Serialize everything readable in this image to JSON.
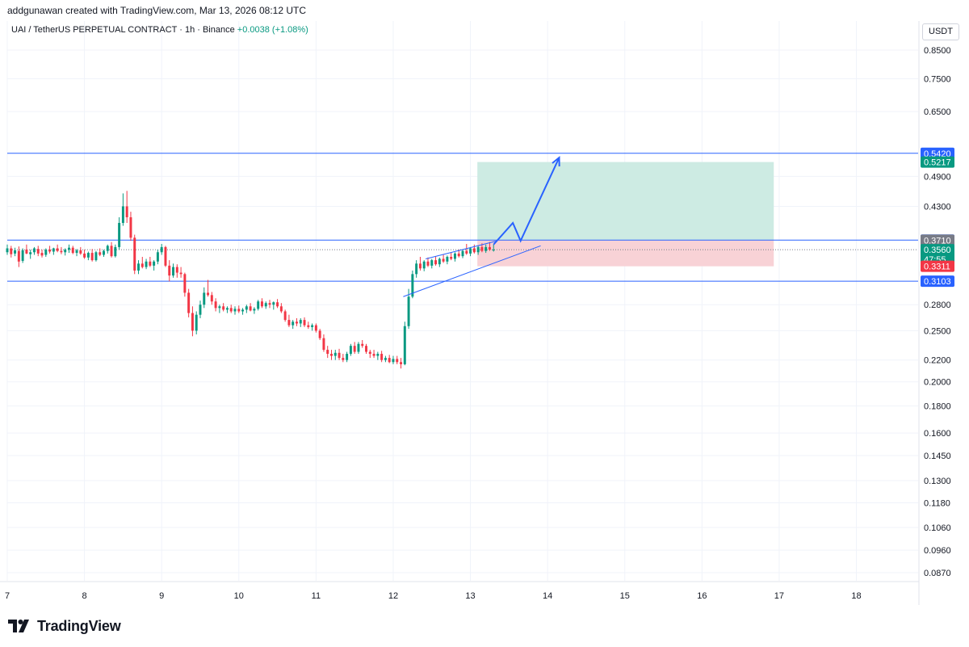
{
  "header": {
    "credit": "addgunawan created with TradingView.com, Mar 13, 2026 08:12 UTC"
  },
  "legend": {
    "symbol": "UAI / TetherUS PERPETUAL CONTRACT · 1h · Binance",
    "change": "+0.0038 (+1.08%)"
  },
  "currency": "USDT",
  "brand": {
    "name": "TradingView"
  },
  "colors": {
    "up": "#089981",
    "down": "#f23645",
    "line": "#2962ff",
    "target_zone": "#cdebe3",
    "stop_zone": "#f8d2d6",
    "badge_gray": "#787b86"
  },
  "chart_data": {
    "type": "candlestick",
    "scale": "log",
    "ylim": [
      0.084,
      0.965
    ],
    "xlim": [
      7.0,
      18.8
    ],
    "y_ticks": [
      "0.8500",
      "0.7500",
      "0.6500",
      "0.4900",
      "0.4300",
      "0.2800",
      "0.2500",
      "0.2200",
      "0.2000",
      "0.1800",
      "0.1600",
      "0.1450",
      "0.1300",
      "0.1180",
      "0.1060",
      "0.0960",
      "0.0870"
    ],
    "x_ticks": [
      "7",
      "8",
      "9",
      "10",
      "11",
      "12",
      "13",
      "14",
      "15",
      "16",
      "17",
      "18"
    ],
    "price_badges": [
      {
        "value": "0.5420",
        "color": "#2962ff",
        "y": 0.542
      },
      {
        "value": "0.5217",
        "color": "#089981",
        "y": 0.5217
      },
      {
        "value": "0.3712",
        "color": "#2962ff",
        "y": 0.3712
      },
      {
        "value": "0.3710",
        "color": "#787b86",
        "y": 0.371
      },
      {
        "value": "0.3560",
        "sub": "47:55",
        "color": "#089981",
        "y": 0.356
      },
      {
        "value": "0.3311",
        "color": "#f23645",
        "y": 0.3311
      },
      {
        "value": "0.3103",
        "color": "#2962ff",
        "y": 0.3103
      }
    ],
    "horizontal_lines": [
      0.542,
      0.3712,
      0.3103
    ],
    "last_price": 0.356,
    "position": {
      "x_start": 13.09,
      "x_end": 16.93,
      "entry": 0.371,
      "target": 0.5217,
      "stop": 0.3311
    },
    "channel_lines": [
      {
        "x1": 12.42,
        "y1": 0.342,
        "x2": 13.35,
        "y2": 0.37
      },
      {
        "x1": 12.13,
        "y1": 0.29,
        "x2": 13.91,
        "y2": 0.362
      }
    ],
    "projection": [
      [
        13.3,
        0.364
      ],
      [
        13.55,
        0.4
      ],
      [
        13.65,
        0.37
      ],
      [
        14.15,
        0.532
      ]
    ],
    "candles": [
      [
        7.0,
        0.352,
        0.364,
        0.348,
        0.358
      ],
      [
        7.05,
        0.358,
        0.362,
        0.344,
        0.349
      ],
      [
        7.1,
        0.35,
        0.359,
        0.346,
        0.355
      ],
      [
        7.15,
        0.354,
        0.361,
        0.33,
        0.338
      ],
      [
        7.2,
        0.339,
        0.358,
        0.336,
        0.355
      ],
      [
        7.25,
        0.356,
        0.364,
        0.349,
        0.35
      ],
      [
        7.3,
        0.349,
        0.356,
        0.342,
        0.352
      ],
      [
        7.35,
        0.352,
        0.36,
        0.348,
        0.358
      ],
      [
        7.4,
        0.357,
        0.362,
        0.346,
        0.35
      ],
      [
        7.45,
        0.351,
        0.356,
        0.344,
        0.347
      ],
      [
        7.5,
        0.348,
        0.358,
        0.345,
        0.356
      ],
      [
        7.55,
        0.356,
        0.362,
        0.35,
        0.353
      ],
      [
        7.6,
        0.353,
        0.359,
        0.348,
        0.358
      ],
      [
        7.65,
        0.358,
        0.364,
        0.352,
        0.354
      ],
      [
        7.7,
        0.354,
        0.36,
        0.349,
        0.352
      ],
      [
        7.75,
        0.352,
        0.358,
        0.347,
        0.356
      ],
      [
        7.8,
        0.356,
        0.364,
        0.351,
        0.359
      ],
      [
        7.85,
        0.359,
        0.362,
        0.349,
        0.351
      ],
      [
        7.9,
        0.351,
        0.357,
        0.346,
        0.355
      ],
      [
        7.95,
        0.355,
        0.36,
        0.348,
        0.35
      ],
      [
        8.0,
        0.35,
        0.356,
        0.342,
        0.344
      ],
      [
        8.05,
        0.344,
        0.353,
        0.34,
        0.351
      ],
      [
        8.1,
        0.351,
        0.357,
        0.338,
        0.34
      ],
      [
        8.15,
        0.34,
        0.354,
        0.338,
        0.352
      ],
      [
        8.2,
        0.352,
        0.358,
        0.346,
        0.348
      ],
      [
        8.25,
        0.348,
        0.356,
        0.345,
        0.354
      ],
      [
        8.3,
        0.354,
        0.364,
        0.35,
        0.362
      ],
      [
        8.35,
        0.362,
        0.368,
        0.344,
        0.346
      ],
      [
        8.4,
        0.346,
        0.364,
        0.344,
        0.36
      ],
      [
        8.45,
        0.36,
        0.41,
        0.356,
        0.4
      ],
      [
        8.5,
        0.4,
        0.455,
        0.395,
        0.43
      ],
      [
        8.55,
        0.43,
        0.46,
        0.4,
        0.41
      ],
      [
        8.6,
        0.41,
        0.42,
        0.37,
        0.375
      ],
      [
        8.65,
        0.375,
        0.38,
        0.32,
        0.325
      ],
      [
        8.7,
        0.325,
        0.34,
        0.32,
        0.335
      ],
      [
        8.75,
        0.335,
        0.345,
        0.328,
        0.33
      ],
      [
        8.8,
        0.33,
        0.342,
        0.327,
        0.338
      ],
      [
        8.85,
        0.338,
        0.345,
        0.33,
        0.332
      ],
      [
        8.9,
        0.332,
        0.34,
        0.325,
        0.338
      ],
      [
        8.95,
        0.338,
        0.356,
        0.334,
        0.352
      ],
      [
        9.0,
        0.352,
        0.365,
        0.348,
        0.36
      ],
      [
        9.05,
        0.36,
        0.362,
        0.33,
        0.332
      ],
      [
        9.1,
        0.332,
        0.34,
        0.31,
        0.318
      ],
      [
        9.15,
        0.318,
        0.335,
        0.315,
        0.33
      ],
      [
        9.2,
        0.33,
        0.334,
        0.315,
        0.322
      ],
      [
        9.25,
        0.322,
        0.33,
        0.315,
        0.32
      ],
      [
        9.3,
        0.32,
        0.322,
        0.29,
        0.295
      ],
      [
        9.35,
        0.295,
        0.3,
        0.265,
        0.27
      ],
      [
        9.4,
        0.27,
        0.278,
        0.244,
        0.25
      ],
      [
        9.45,
        0.25,
        0.272,
        0.246,
        0.268
      ],
      [
        9.5,
        0.268,
        0.285,
        0.264,
        0.28
      ],
      [
        9.55,
        0.28,
        0.302,
        0.276,
        0.295
      ],
      [
        9.6,
        0.295,
        0.312,
        0.29,
        0.292
      ],
      [
        9.65,
        0.292,
        0.296,
        0.28,
        0.284
      ],
      [
        9.7,
        0.284,
        0.288,
        0.272,
        0.276
      ],
      [
        9.75,
        0.276,
        0.28,
        0.27,
        0.278
      ],
      [
        9.8,
        0.278,
        0.282,
        0.272,
        0.274
      ],
      [
        9.85,
        0.274,
        0.278,
        0.27,
        0.276
      ],
      [
        9.9,
        0.276,
        0.28,
        0.27,
        0.272
      ],
      [
        9.95,
        0.272,
        0.278,
        0.268,
        0.275
      ],
      [
        10.0,
        0.275,
        0.279,
        0.27,
        0.272
      ],
      [
        10.05,
        0.272,
        0.276,
        0.268,
        0.274
      ],
      [
        10.1,
        0.274,
        0.28,
        0.27,
        0.278
      ],
      [
        10.15,
        0.278,
        0.282,
        0.272,
        0.273
      ],
      [
        10.2,
        0.273,
        0.277,
        0.269,
        0.275
      ],
      [
        10.25,
        0.275,
        0.286,
        0.273,
        0.284
      ],
      [
        10.3,
        0.284,
        0.288,
        0.276,
        0.278
      ],
      [
        10.35,
        0.278,
        0.284,
        0.275,
        0.282
      ],
      [
        10.4,
        0.282,
        0.286,
        0.276,
        0.28
      ],
      [
        10.45,
        0.28,
        0.284,
        0.274,
        0.283
      ],
      [
        10.5,
        0.283,
        0.287,
        0.276,
        0.278
      ],
      [
        10.55,
        0.278,
        0.282,
        0.27,
        0.272
      ],
      [
        10.6,
        0.272,
        0.274,
        0.26,
        0.262
      ],
      [
        10.65,
        0.262,
        0.268,
        0.254,
        0.256
      ],
      [
        10.7,
        0.256,
        0.262,
        0.252,
        0.26
      ],
      [
        10.75,
        0.26,
        0.264,
        0.255,
        0.258
      ],
      [
        10.8,
        0.258,
        0.264,
        0.254,
        0.262
      ],
      [
        10.85,
        0.262,
        0.265,
        0.254,
        0.256
      ],
      [
        10.9,
        0.256,
        0.26,
        0.252,
        0.254
      ],
      [
        10.95,
        0.254,
        0.258,
        0.25,
        0.256
      ],
      [
        11.0,
        0.256,
        0.258,
        0.248,
        0.25
      ],
      [
        11.05,
        0.25,
        0.252,
        0.24,
        0.242
      ],
      [
        11.1,
        0.242,
        0.246,
        0.228,
        0.23
      ],
      [
        11.15,
        0.23,
        0.234,
        0.222,
        0.226
      ],
      [
        11.2,
        0.226,
        0.23,
        0.22,
        0.224
      ],
      [
        11.25,
        0.224,
        0.23,
        0.22,
        0.227
      ],
      [
        11.3,
        0.227,
        0.231,
        0.22,
        0.222
      ],
      [
        11.35,
        0.222,
        0.226,
        0.218,
        0.22
      ],
      [
        11.4,
        0.22,
        0.228,
        0.218,
        0.226
      ],
      [
        11.45,
        0.226,
        0.236,
        0.224,
        0.234
      ],
      [
        11.5,
        0.234,
        0.238,
        0.226,
        0.228
      ],
      [
        11.55,
        0.228,
        0.238,
        0.226,
        0.236
      ],
      [
        11.6,
        0.236,
        0.24,
        0.232,
        0.234
      ],
      [
        11.65,
        0.234,
        0.236,
        0.226,
        0.228
      ],
      [
        11.7,
        0.228,
        0.23,
        0.222,
        0.226
      ],
      [
        11.75,
        0.226,
        0.23,
        0.222,
        0.224
      ],
      [
        11.8,
        0.224,
        0.228,
        0.22,
        0.226
      ],
      [
        11.85,
        0.226,
        0.229,
        0.218,
        0.22
      ],
      [
        11.9,
        0.22,
        0.224,
        0.218,
        0.222
      ],
      [
        11.95,
        0.222,
        0.225,
        0.217,
        0.218
      ],
      [
        12.0,
        0.218,
        0.224,
        0.216,
        0.221
      ],
      [
        12.05,
        0.221,
        0.224,
        0.216,
        0.218
      ],
      [
        12.1,
        0.218,
        0.222,
        0.212,
        0.216
      ],
      [
        12.15,
        0.216,
        0.26,
        0.215,
        0.255
      ],
      [
        12.2,
        0.255,
        0.3,
        0.252,
        0.29
      ],
      [
        12.25,
        0.29,
        0.325,
        0.288,
        0.32
      ],
      [
        12.3,
        0.32,
        0.34,
        0.315,
        0.335
      ],
      [
        12.35,
        0.335,
        0.345,
        0.325,
        0.328
      ],
      [
        12.4,
        0.328,
        0.34,
        0.324,
        0.338
      ],
      [
        12.45,
        0.338,
        0.344,
        0.33,
        0.332
      ],
      [
        12.5,
        0.332,
        0.342,
        0.328,
        0.34
      ],
      [
        12.55,
        0.34,
        0.346,
        0.332,
        0.334
      ],
      [
        12.6,
        0.334,
        0.344,
        0.33,
        0.342
      ],
      [
        12.65,
        0.342,
        0.348,
        0.336,
        0.338
      ],
      [
        12.7,
        0.338,
        0.347,
        0.334,
        0.345
      ],
      [
        12.75,
        0.345,
        0.352,
        0.34,
        0.342
      ],
      [
        12.8,
        0.342,
        0.352,
        0.338,
        0.35
      ],
      [
        12.85,
        0.35,
        0.356,
        0.344,
        0.346
      ],
      [
        12.9,
        0.346,
        0.356,
        0.343,
        0.354
      ],
      [
        12.95,
        0.354,
        0.365,
        0.348,
        0.35
      ],
      [
        13.0,
        0.35,
        0.36,
        0.346,
        0.358
      ],
      [
        13.05,
        0.358,
        0.364,
        0.35,
        0.352
      ],
      [
        13.1,
        0.352,
        0.362,
        0.348,
        0.36
      ],
      [
        13.15,
        0.36,
        0.366,
        0.352,
        0.354
      ],
      [
        13.2,
        0.354,
        0.364,
        0.351,
        0.36
      ],
      [
        13.25,
        0.36,
        0.368,
        0.354,
        0.356
      ],
      [
        13.3,
        0.356,
        0.364,
        0.353,
        0.356
      ]
    ]
  }
}
